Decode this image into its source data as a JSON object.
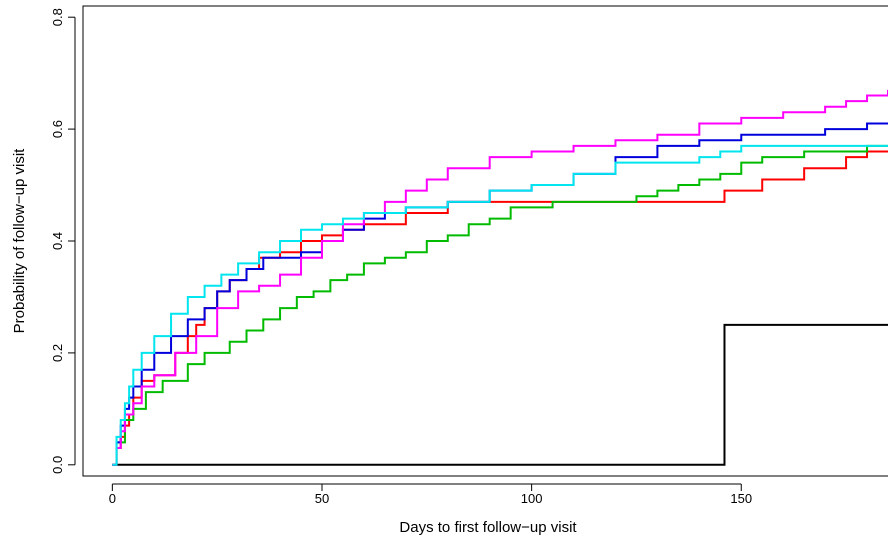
{
  "chart_data": {
    "type": "line",
    "step": true,
    "title": "",
    "xlabel": "Days to first follow−up visit",
    "ylabel": "Probability of follow−up visit",
    "xlim": [
      -7,
      185
    ],
    "ylim": [
      -0.02,
      0.82
    ],
    "xticks": [
      0,
      50,
      100,
      150
    ],
    "xtick_labels": [
      "0",
      "50",
      "100",
      "150"
    ],
    "yticks": [
      0.0,
      0.2,
      0.4,
      0.6,
      0.8
    ],
    "ytick_labels": [
      "0.0",
      "0.2",
      "0.4",
      "0.6",
      "0.8"
    ],
    "grid": false,
    "legend": "none",
    "series": [
      {
        "color": "#000000",
        "x": [
          0,
          146,
          185
        ],
        "y": [
          0.0,
          0.25,
          0.25
        ]
      },
      {
        "color": "#ff0000",
        "x": [
          0,
          1,
          2,
          3,
          4,
          5,
          7,
          10,
          15,
          18,
          20,
          22,
          25,
          28,
          32,
          35,
          40,
          45,
          50,
          55,
          60,
          70,
          80,
          100,
          120,
          146,
          155,
          165,
          175,
          180,
          185
        ],
        "y": [
          0.0,
          0.03,
          0.05,
          0.07,
          0.09,
          0.12,
          0.15,
          0.16,
          0.2,
          0.23,
          0.25,
          0.28,
          0.31,
          0.33,
          0.35,
          0.37,
          0.38,
          0.4,
          0.41,
          0.42,
          0.43,
          0.45,
          0.47,
          0.47,
          0.47,
          0.49,
          0.51,
          0.53,
          0.55,
          0.56,
          0.56
        ]
      },
      {
        "color": "#00bb00",
        "x": [
          0,
          1,
          3,
          5,
          8,
          12,
          18,
          22,
          28,
          32,
          36,
          40,
          44,
          48,
          52,
          56,
          60,
          65,
          70,
          75,
          80,
          85,
          90,
          95,
          100,
          105,
          110,
          118,
          125,
          130,
          135,
          140,
          145,
          150,
          155,
          160,
          165,
          170,
          175,
          180,
          185
        ],
        "y": [
          0.0,
          0.04,
          0.08,
          0.1,
          0.13,
          0.15,
          0.18,
          0.2,
          0.22,
          0.24,
          0.26,
          0.28,
          0.3,
          0.31,
          0.33,
          0.34,
          0.36,
          0.37,
          0.38,
          0.4,
          0.41,
          0.43,
          0.44,
          0.46,
          0.46,
          0.47,
          0.47,
          0.47,
          0.48,
          0.49,
          0.5,
          0.51,
          0.52,
          0.54,
          0.55,
          0.55,
          0.56,
          0.56,
          0.56,
          0.57,
          0.57
        ]
      },
      {
        "color": "#0000dd",
        "x": [
          0,
          1,
          2,
          3,
          4,
          5,
          7,
          10,
          14,
          18,
          22,
          25,
          28,
          32,
          36,
          40,
          45,
          50,
          55,
          60,
          65,
          70,
          80,
          90,
          100,
          110,
          120,
          130,
          140,
          150,
          160,
          170,
          180,
          185
        ],
        "y": [
          0.0,
          0.04,
          0.07,
          0.1,
          0.12,
          0.14,
          0.17,
          0.2,
          0.23,
          0.26,
          0.28,
          0.31,
          0.33,
          0.35,
          0.37,
          0.37,
          0.38,
          0.4,
          0.42,
          0.44,
          0.45,
          0.46,
          0.47,
          0.49,
          0.5,
          0.52,
          0.55,
          0.57,
          0.58,
          0.59,
          0.59,
          0.6,
          0.61,
          0.61
        ]
      },
      {
        "color": "#ff00ff",
        "x": [
          0,
          1,
          2,
          3,
          5,
          7,
          10,
          15,
          20,
          25,
          30,
          35,
          40,
          45,
          50,
          55,
          60,
          65,
          70,
          75,
          80,
          90,
          100,
          110,
          120,
          130,
          140,
          150,
          160,
          170,
          175,
          180,
          185
        ],
        "y": [
          0.0,
          0.03,
          0.06,
          0.09,
          0.11,
          0.14,
          0.16,
          0.2,
          0.23,
          0.28,
          0.31,
          0.32,
          0.34,
          0.37,
          0.4,
          0.43,
          0.45,
          0.47,
          0.49,
          0.51,
          0.53,
          0.55,
          0.56,
          0.57,
          0.58,
          0.59,
          0.61,
          0.62,
          0.63,
          0.64,
          0.65,
          0.66,
          0.67
        ]
      },
      {
        "color": "#00e5ee",
        "x": [
          0,
          1,
          2,
          3,
          4,
          5,
          7,
          10,
          14,
          18,
          22,
          26,
          30,
          35,
          40,
          45,
          50,
          55,
          60,
          70,
          80,
          90,
          100,
          110,
          120,
          140,
          145,
          150,
          160,
          170,
          180,
          185
        ],
        "y": [
          0.0,
          0.05,
          0.08,
          0.11,
          0.14,
          0.17,
          0.2,
          0.23,
          0.27,
          0.3,
          0.32,
          0.34,
          0.36,
          0.38,
          0.4,
          0.42,
          0.43,
          0.44,
          0.45,
          0.46,
          0.47,
          0.49,
          0.5,
          0.52,
          0.54,
          0.55,
          0.56,
          0.57,
          0.57,
          0.57,
          0.57,
          0.57
        ]
      }
    ]
  }
}
